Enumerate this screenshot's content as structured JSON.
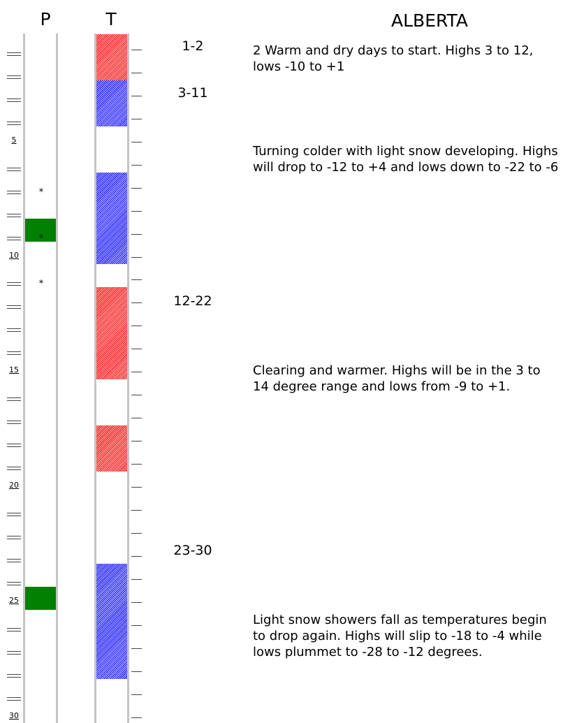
{
  "headers": {
    "precip": "P",
    "temp": "T",
    "region": "ALBERTA"
  },
  "day_labels": [
    "5",
    "10",
    "15",
    "20",
    "25",
    "30"
  ],
  "periods": [
    {
      "range": "1-2",
      "text": "2 Warm and dry days to start. Highs 3 to 12, lows -10 to +1"
    },
    {
      "range": "3-11",
      "text": "Turning colder with light snow developing. Highs will drop to -12 to +4 and lows down to -22 to -6"
    },
    {
      "range": "12-22",
      "text": "Clearing and warmer. Highs will be in the 3 to 14 degree range and lows from -9 to +1."
    },
    {
      "range": "23-30",
      "text": "Light snow showers fall as temperatures begin to drop again. Highs will slip to -18 to -4 while lows plummet to -28 to -12 degrees."
    }
  ],
  "temperature_bands": [
    {
      "days": [
        1,
        2
      ],
      "type": "warm"
    },
    {
      "days": [
        3,
        4
      ],
      "type": "cold"
    },
    {
      "days": [
        7,
        10
      ],
      "type": "cold"
    },
    {
      "days": [
        12,
        15
      ],
      "type": "warm"
    },
    {
      "days": [
        18,
        19
      ],
      "type": "warm"
    },
    {
      "days": [
        24,
        28
      ],
      "type": "cold"
    }
  ],
  "precip_days": [
    9,
    25
  ],
  "snow_marks": {
    "days": [
      8,
      10,
      12
    ],
    "symbol": "*"
  },
  "colors": {
    "warm": "#f23232",
    "cold": "#2a2aee",
    "precip": "#008000",
    "border": "#c4c4c4"
  }
}
